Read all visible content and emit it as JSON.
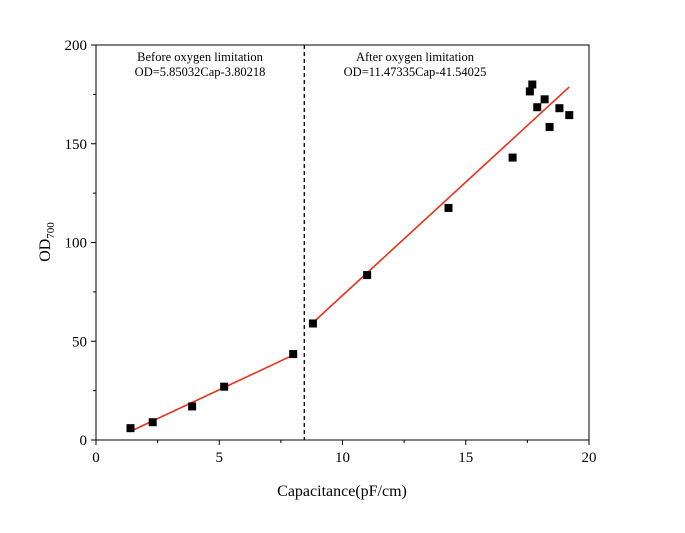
{
  "chart_data": {
    "type": "scatter",
    "title": "",
    "xlabel": "Capacitance(pF/cm)",
    "ylabel_main": "OD",
    "ylabel_sub": "700",
    "xlim": [
      0,
      20
    ],
    "ylim": [
      0,
      200
    ],
    "xticks": [
      0,
      5,
      10,
      15,
      20
    ],
    "yticks": [
      0,
      50,
      100,
      150,
      200
    ],
    "grid": false,
    "marker_color": "#000000",
    "fit_color": "#e8321e",
    "divider_x": 8.45,
    "series": [
      {
        "x": [
          1.4,
          2.3,
          3.9,
          5.2,
          8.0
        ],
        "y": [
          6,
          9,
          17,
          27,
          43.5
        ]
      },
      {
        "x": [
          8.8,
          11.0,
          14.3,
          16.9,
          17.6,
          17.7,
          17.9,
          18.2,
          18.4,
          18.8,
          19.2
        ],
        "y": [
          59,
          83.5,
          117.5,
          143,
          176.5,
          180,
          168.5,
          172.5,
          158.5,
          168,
          164.5
        ]
      }
    ],
    "fits": [
      {
        "slope": 5.85032,
        "intercept": -3.80218,
        "x_start": 1.35,
        "x_end": 8.0
      },
      {
        "slope": 11.47335,
        "intercept": -41.54025,
        "x_start": 8.8,
        "x_end": 19.2
      }
    ],
    "annotations": [
      {
        "line1": "Before oxygen limitation",
        "line2": "OD=5.85032Cap-3.80218"
      },
      {
        "line1": "After oxygen limitation",
        "line2": "OD=11.47335Cap-41.54025"
      }
    ]
  }
}
